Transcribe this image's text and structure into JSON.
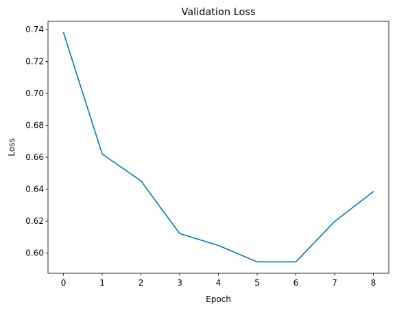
{
  "chart_data": {
    "type": "line",
    "title": "Validation Loss",
    "xlabel": "Epoch",
    "ylabel": "Loss",
    "x": [
      0,
      1,
      2,
      3,
      4,
      5,
      6,
      7,
      8
    ],
    "series": [
      {
        "values": [
          0.738,
          0.662,
          0.6452,
          0.6122,
          0.6048,
          0.5945,
          0.5945,
          0.6198,
          0.6385
        ],
        "color": "#0077bb"
      }
    ],
    "xlim": [
      -0.4,
      8.4
    ],
    "ylim": [
      0.5874,
      0.7451
    ],
    "xticks": [
      0,
      1,
      2,
      3,
      4,
      5,
      6,
      7,
      8
    ],
    "xtick_labels": [
      "0",
      "1",
      "2",
      "3",
      "4",
      "5",
      "6",
      "7",
      "8"
    ],
    "yticks": [
      0.6,
      0.62,
      0.64,
      0.66,
      0.68,
      0.7,
      0.72,
      0.74
    ],
    "ytick_labels": [
      "0.60",
      "0.62",
      "0.64",
      "0.66",
      "0.68",
      "0.70",
      "0.72",
      "0.74"
    ],
    "grid": false,
    "legend": false
  }
}
